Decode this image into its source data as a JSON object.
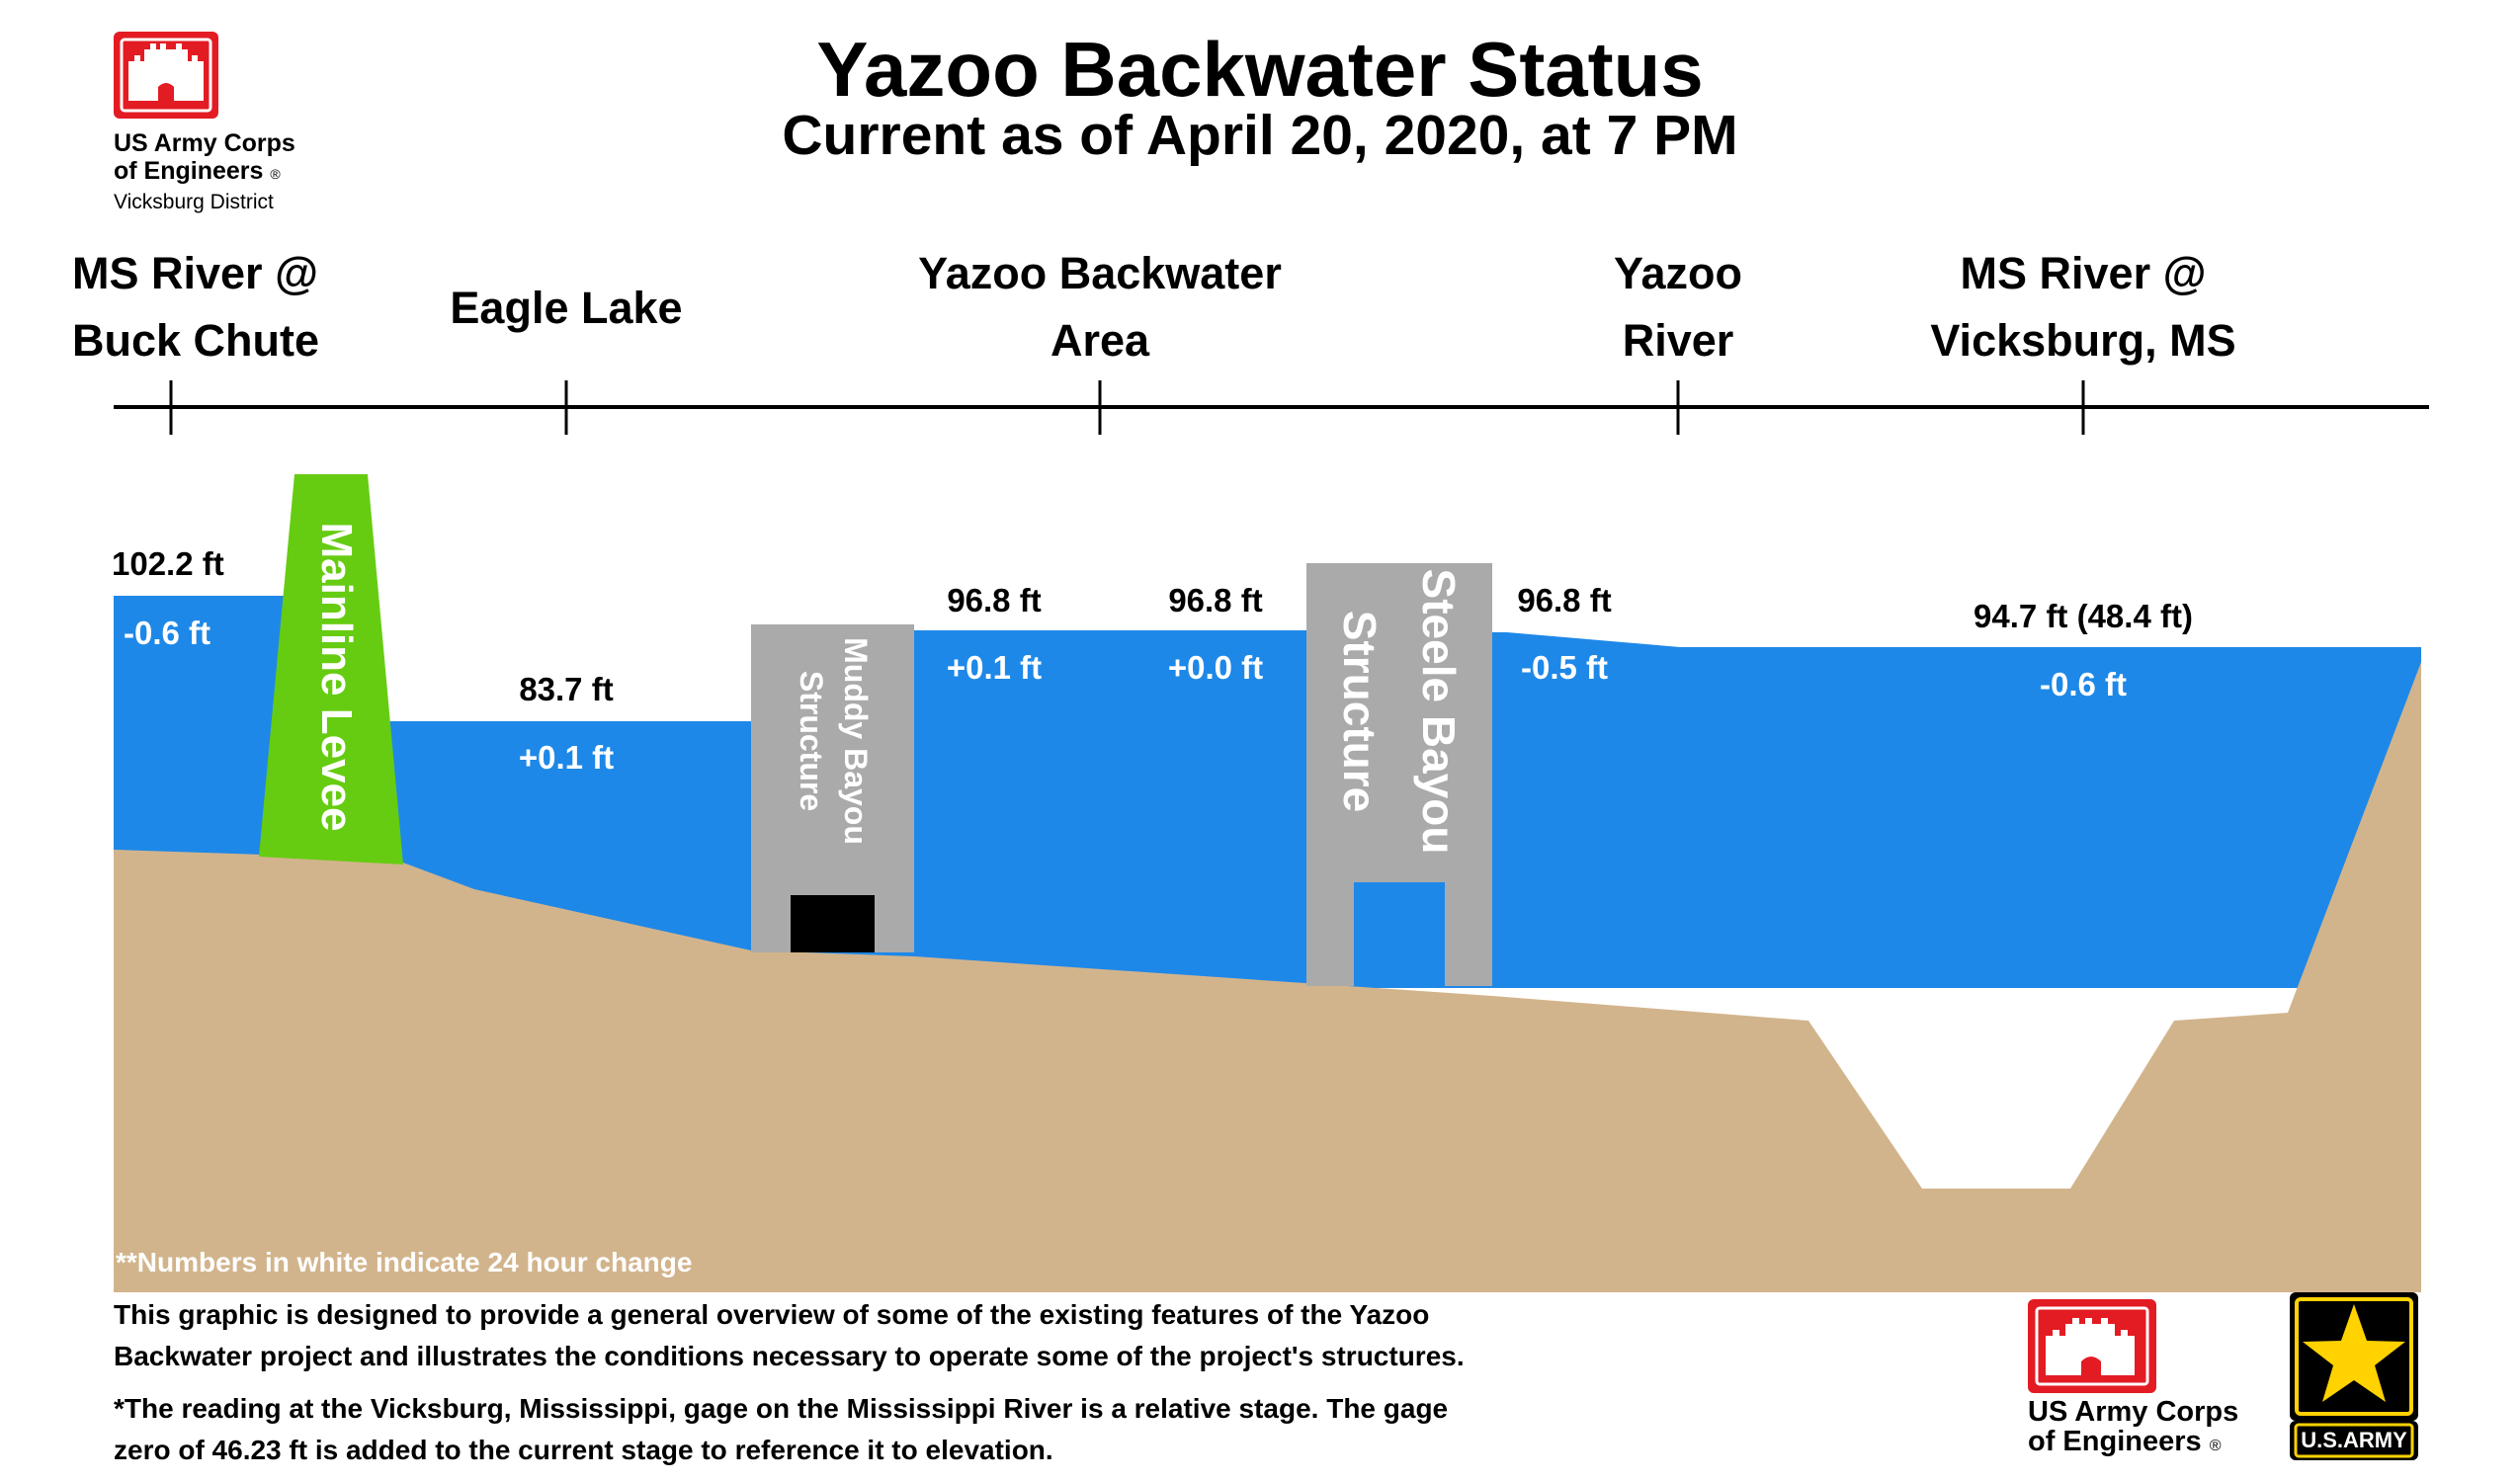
{
  "header": {
    "title": "Yazoo Backwater Status",
    "subtitle": "Current as of April 20, 2020, at 7 PM"
  },
  "usace_logo": {
    "line1": "US Army Corps",
    "line2": "of Engineers",
    "registered": "®",
    "district": "Vicksburg District"
  },
  "locations": [
    {
      "line1": "MS River @",
      "line2": "Buck Chute"
    },
    {
      "line1": "Eagle Lake",
      "line2": ""
    },
    {
      "line1": "Yazoo Backwater",
      "line2": "Area"
    },
    {
      "line1": "Yazoo",
      "line2": "River"
    },
    {
      "line1": "MS River @",
      "line2": "Vicksburg, MS"
    }
  ],
  "readings": [
    {
      "level": "102.2 ft",
      "change": "-0.6 ft"
    },
    {
      "level": "83.7 ft",
      "change": "+0.1 ft"
    },
    {
      "level": "96.8 ft",
      "change": "+0.1 ft"
    },
    {
      "level": "96.8 ft",
      "change": "+0.0 ft"
    },
    {
      "level": "96.8 ft",
      "change": "-0.5 ft"
    },
    {
      "level": "94.7 ft (48.4 ft)",
      "change": "-0.6 ft"
    }
  ],
  "structures": {
    "levee": "Mainline Levee",
    "muddy_line1": "Muddy Bayou",
    "muddy_line2": "Structure",
    "steele_line1": "Steele Bayou",
    "steele_line2": "Structure"
  },
  "footnotes": {
    "change_note": "**Numbers in white indicate 24 hour change",
    "overview_line1": "This graphic is designed to provide a general overview of some of the existing features of the Yazoo",
    "overview_line2": "Backwater project and illustrates the conditions necessary to operate some of the project's structures.",
    "gage_line1": "*The reading at the Vicksburg, Mississippi, gage on the Mississippi River is a relative stage. The gage",
    "gage_line2": "zero of 46.23 ft is added to the current stage to reference it to elevation."
  },
  "army_logo": {
    "text": "U.S.ARMY"
  },
  "colors": {
    "water": "#1e88e8",
    "ground": "#d2b48c",
    "levee": "#66cc11",
    "structure": "#aaaaaa",
    "usace_red": "#e31b23"
  }
}
